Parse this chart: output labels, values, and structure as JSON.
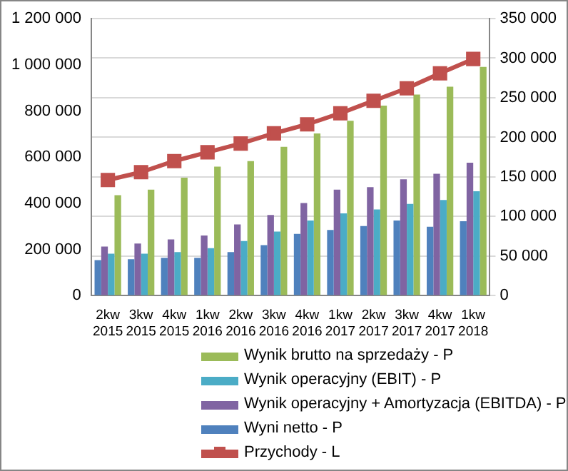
{
  "chart_data": {
    "type": "bar",
    "categories": [
      "2kw 2015",
      "3kw 2015",
      "4kw 2015",
      "1kw 2016",
      "2kw 2016",
      "3kw 2016",
      "4kw 2016",
      "1kw 2017",
      "2kw 2017",
      "3kw 2017",
      "4kw 2017",
      "1kw 2018"
    ],
    "series": [
      {
        "name": "Przychody - L",
        "type": "line",
        "color": "#c0504d",
        "marker": "square",
        "values": [
          501000,
          535000,
          583000,
          621000,
          659000,
          703000,
          742000,
          790000,
          844000,
          898000,
          963000,
          1025000
        ]
      },
      {
        "name": "Wyni netto - P",
        "axis": "y2",
        "color": "#4f81bd",
        "values": [
          45000,
          46000,
          48000,
          48000,
          55000,
          64000,
          78000,
          83000,
          88000,
          95000,
          87000,
          94000
        ]
      },
      {
        "name": "Wynik operacyjny + Amortyzacja (EBITDA) - P",
        "axis": "y2",
        "color": "#8064a2",
        "values": [
          62000,
          66000,
          71000,
          76000,
          90000,
          102000,
          117000,
          134000,
          137000,
          147000,
          154000,
          168000
        ]
      },
      {
        "name": "Wynik operacyjny (EBIT) - P",
        "axis": "y2",
        "color": "#4bacc6",
        "values": [
          53000,
          53000,
          55000,
          60000,
          69000,
          81000,
          95000,
          104000,
          109000,
          116000,
          121000,
          132000
        ]
      },
      {
        "name": "Wynik brutto na sprzedaży - P",
        "axis": "y2",
        "color": "#9bbb59",
        "values": [
          127000,
          134000,
          149000,
          163000,
          170000,
          188000,
          205000,
          221000,
          240000,
          254000,
          264000,
          289000
        ]
      }
    ],
    "ylim": [
      0,
      1200000
    ],
    "yticks": [
      {
        "value": 0,
        "label": "0"
      },
      {
        "value": 200000,
        "label": "200 000"
      },
      {
        "value": 400000,
        "label": "400 000"
      },
      {
        "value": 600000,
        "label": "600 000"
      },
      {
        "value": 800000,
        "label": "800 000"
      },
      {
        "value": 1000000,
        "label": "1 000 000"
      },
      {
        "value": 1200000,
        "label": "1 200 000"
      }
    ],
    "y2lim": [
      0,
      350000
    ],
    "y2ticks": [
      {
        "value": 0,
        "label": "0"
      },
      {
        "value": 50000,
        "label": "50 000"
      },
      {
        "value": 100000,
        "label": "100 000"
      },
      {
        "value": 150000,
        "label": "150 000"
      },
      {
        "value": 200000,
        "label": "200 000"
      },
      {
        "value": 250000,
        "label": "250 000"
      },
      {
        "value": 300000,
        "label": "300 000"
      },
      {
        "value": 350000,
        "label": "350 000"
      }
    ],
    "grid": "y2",
    "legend": "bottom"
  }
}
